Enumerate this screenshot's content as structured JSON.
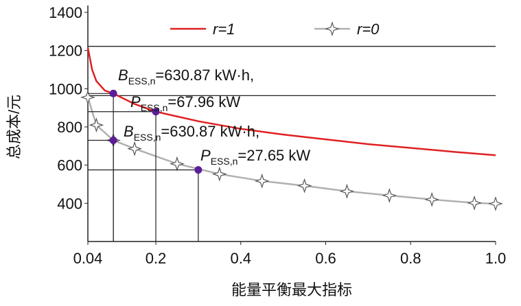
{
  "chart_data": {
    "type": "line",
    "xlabel": "能量平衡最大指标",
    "ylabel": "总成本/元",
    "xlim": [
      0.04,
      1.0
    ],
    "ylim": [
      200,
      1400
    ],
    "xticks": [
      0.04,
      0.2,
      0.4,
      0.6,
      0.8,
      {
        "value": 1,
        "label": "1.0"
      }
    ],
    "yticks": [
      400,
      600,
      800,
      1000,
      1200,
      1400
    ],
    "reference_lines": [
      1222,
      964
    ],
    "series": [
      {
        "name": "r=1",
        "color": "#e02020",
        "marker": "none",
        "x": [
          0.04,
          0.05,
          0.06,
          0.08,
          0.1,
          0.15,
          0.2,
          0.3,
          0.4,
          0.5,
          0.6,
          0.7,
          0.8,
          0.9,
          1.0
        ],
        "values": [
          1215,
          1100,
          1040,
          990,
          975,
          920,
          880,
          830,
          790,
          760,
          735,
          710,
          690,
          670,
          652
        ]
      },
      {
        "name": "r=0",
        "color": "#b0b0b0",
        "marker": "star",
        "x": [
          0.04,
          0.06,
          0.1,
          0.15,
          0.25,
          0.35,
          0.45,
          0.55,
          0.65,
          0.75,
          0.85,
          0.95,
          1.0
        ],
        "values": [
          955,
          810,
          730,
          686,
          607,
          553,
          517,
          492,
          463,
          441,
          420,
          402,
          398
        ]
      }
    ],
    "annotations": [
      {
        "x": 0.1,
        "y": 975,
        "symbol": "B",
        "subscript": "ESS,n",
        "text": "=630.87 kW·h,"
      },
      {
        "x": 0.2,
        "y": 880,
        "symbol": "P",
        "subscript": "ESS,n",
        "text": "=67.96 kW"
      },
      {
        "x": 0.1,
        "y": 730,
        "symbol": "B",
        "subscript": "ESS,n",
        "text": "=630.87 kW·h,"
      },
      {
        "x": 0.3,
        "y": 575,
        "symbol": "P",
        "subscript": "ESS,n",
        "text": "=27.65 kW"
      }
    ],
    "point_color": "#5b1f99"
  }
}
